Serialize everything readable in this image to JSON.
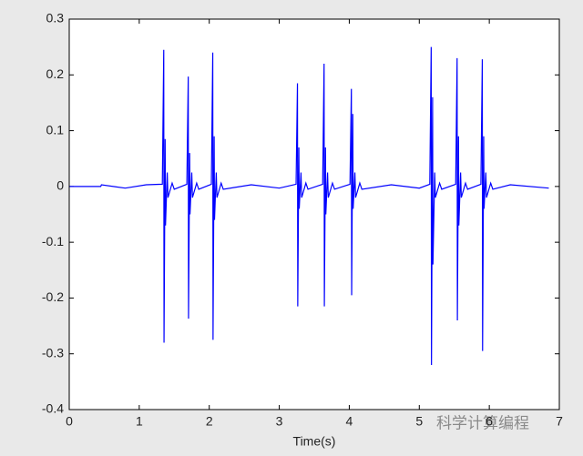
{
  "chart_data": {
    "type": "line",
    "xlabel": "Time(s)",
    "annotation": "科学计算编程",
    "xlim": [
      0,
      7
    ],
    "ylim": [
      -0.4,
      0.3
    ],
    "xticks": [
      0,
      1,
      2,
      3,
      4,
      5,
      6,
      7
    ],
    "yticks": [
      -0.4,
      -0.3,
      -0.2,
      -0.1,
      0,
      0.1,
      0.2,
      0.3
    ],
    "x": [
      0,
      0.45,
      0.46,
      0.8,
      1.1,
      1.33,
      1.35,
      1.354,
      1.37,
      1.375,
      1.4,
      1.41,
      1.47,
      1.5,
      1.68,
      1.7,
      1.704,
      1.72,
      1.725,
      1.75,
      1.76,
      1.82,
      1.85,
      2.03,
      2.05,
      2.054,
      2.07,
      2.075,
      2.1,
      2.11,
      2.17,
      2.2,
      2.6,
      3.0,
      3.24,
      3.26,
      3.264,
      3.28,
      3.285,
      3.31,
      3.32,
      3.38,
      3.41,
      3.62,
      3.64,
      3.644,
      3.66,
      3.665,
      3.69,
      3.7,
      3.76,
      3.79,
      4.01,
      4.03,
      4.034,
      4.05,
      4.055,
      4.08,
      4.09,
      4.15,
      4.18,
      4.6,
      5.0,
      5.15,
      5.17,
      5.174,
      5.19,
      5.195,
      5.22,
      5.23,
      5.29,
      5.32,
      5.52,
      5.54,
      5.544,
      5.56,
      5.565,
      5.59,
      5.6,
      5.66,
      5.69,
      5.88,
      5.9,
      5.904,
      5.92,
      5.925,
      5.95,
      5.96,
      6.02,
      6.05,
      6.3,
      6.85
    ],
    "series": [
      {
        "color": "#0000ff",
        "values": [
          0,
          0,
          0.003,
          -0.003,
          0.003,
          0.004,
          0.245,
          -0.28,
          0.085,
          -0.07,
          0.025,
          -0.02,
          0.006,
          -0.005,
          0.004,
          0.197,
          -0.237,
          0.06,
          -0.05,
          0.025,
          -0.02,
          0.006,
          -0.005,
          0.004,
          0.24,
          -0.275,
          0.09,
          -0.06,
          0.025,
          -0.02,
          0.006,
          -0.005,
          0.003,
          -0.003,
          0.004,
          0.185,
          -0.215,
          0.07,
          -0.04,
          0.025,
          -0.02,
          0.006,
          -0.005,
          0.004,
          0.22,
          -0.215,
          0.07,
          -0.05,
          0.025,
          -0.02,
          0.006,
          -0.005,
          0.004,
          0.175,
          -0.195,
          0.13,
          -0.04,
          0.025,
          -0.02,
          0.006,
          -0.005,
          0.003,
          -0.003,
          0.004,
          0.25,
          -0.32,
          0.16,
          -0.14,
          0.025,
          -0.02,
          0.006,
          -0.005,
          0.004,
          0.23,
          -0.24,
          0.09,
          -0.07,
          0.025,
          -0.02,
          0.006,
          -0.005,
          0.004,
          0.228,
          -0.295,
          0.09,
          -0.04,
          0.025,
          -0.02,
          0.006,
          -0.005,
          0.003,
          -0.003
        ]
      }
    ]
  }
}
